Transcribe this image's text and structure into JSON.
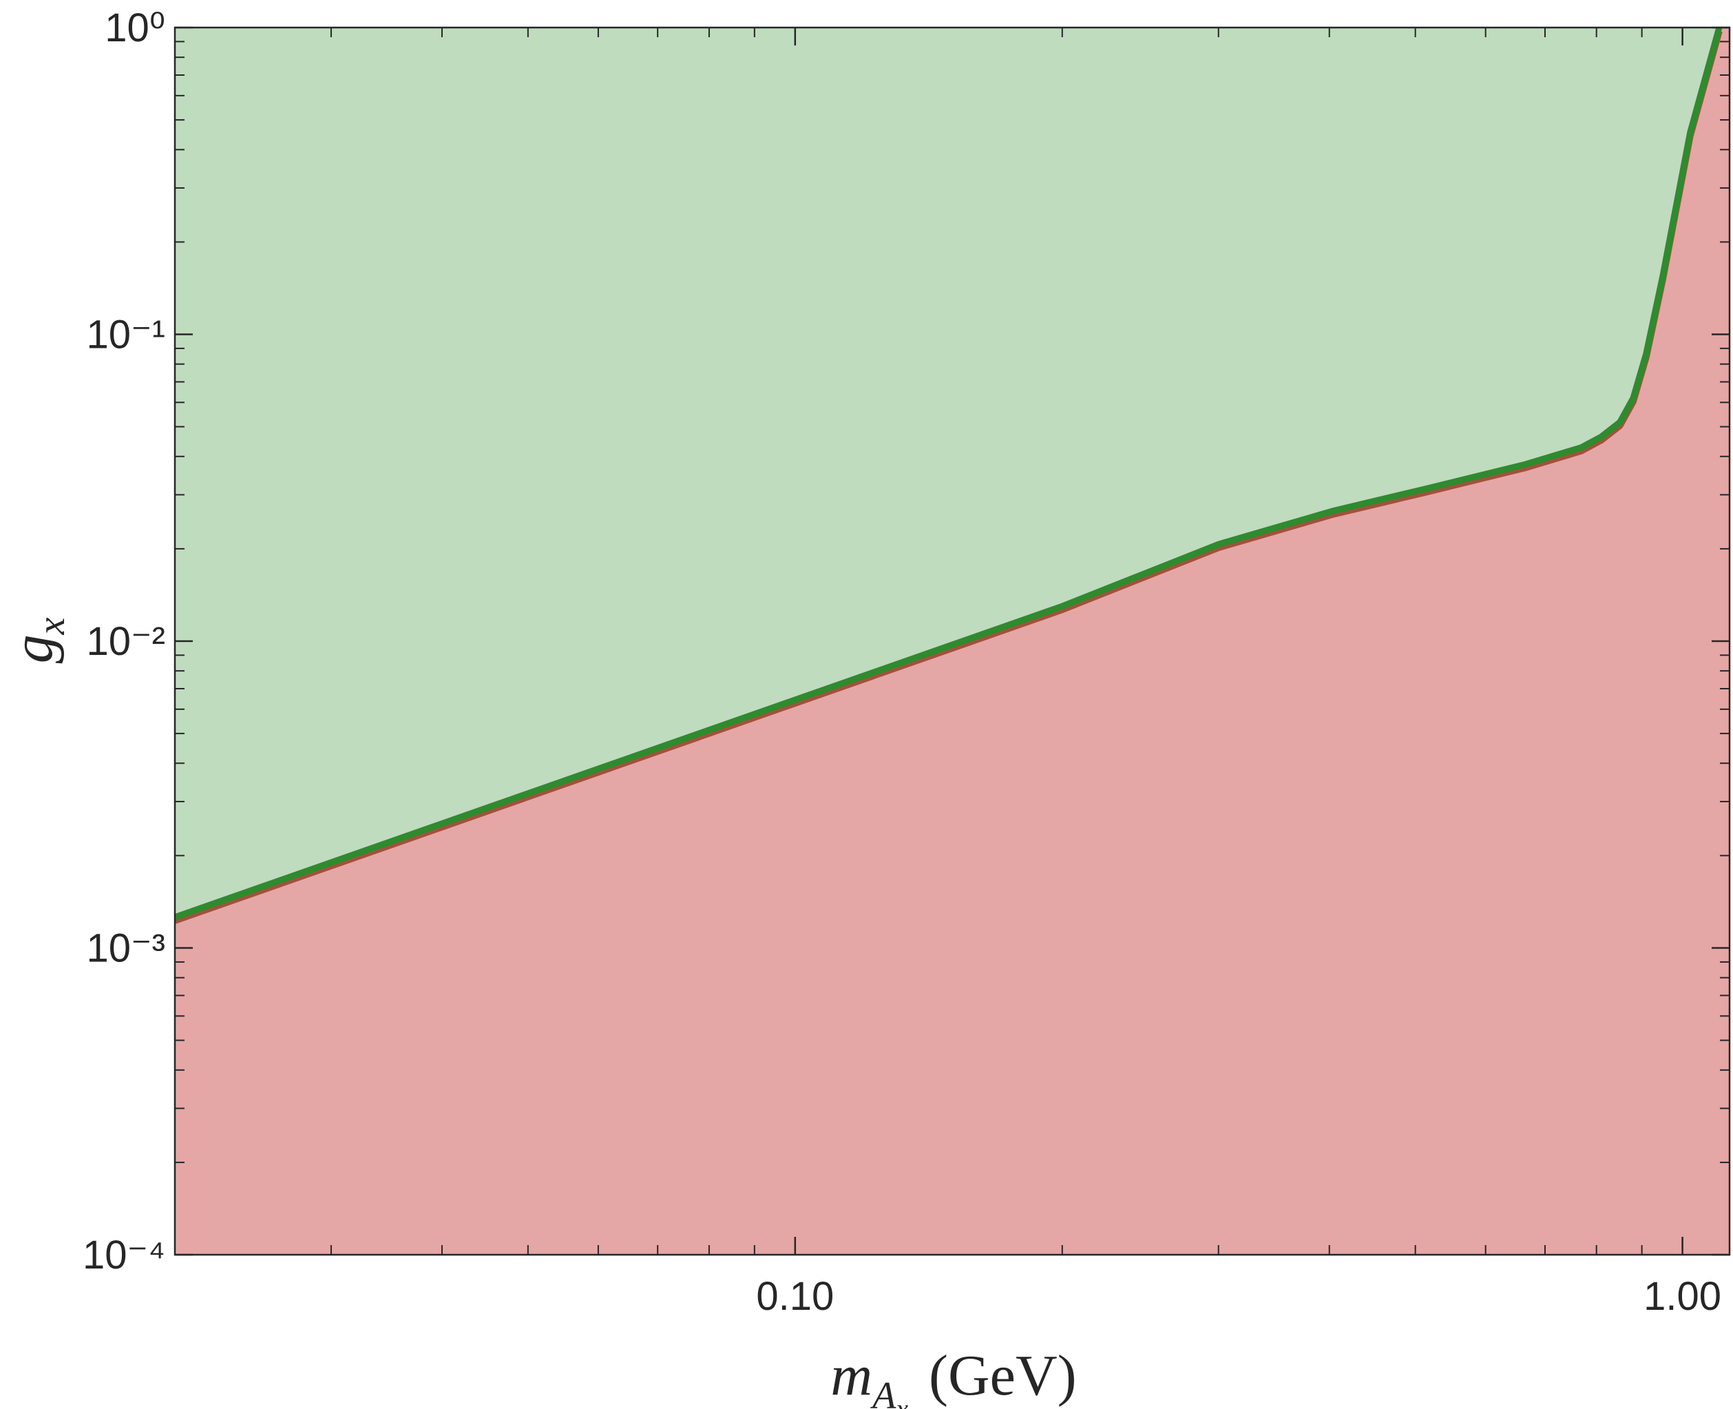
{
  "chart_data": {
    "type": "area",
    "xlabel": {
      "symbol": "m",
      "sub": "A",
      "subsub": "x",
      "unit": "(GeV)"
    },
    "ylabel": {
      "symbol": "g",
      "sub": "x"
    },
    "x": [
      0.02,
      0.1,
      0.2,
      0.3,
      0.404,
      0.514,
      0.665,
      0.769,
      0.81,
      0.85,
      0.88,
      0.91,
      0.95,
      1.02,
      1.1
    ],
    "values": [
      0.00126,
      0.00644,
      0.013,
      0.0207,
      0.0266,
      0.0314,
      0.0377,
      0.0428,
      0.0464,
      0.0517,
      0.062,
      0.0865,
      0.155,
      0.455,
      1
    ],
    "line_color": "#2e8b2e",
    "edge_color": "#a0523c",
    "fill_above_color": "#bfdcbe",
    "fill_below_color": "#e5a6a6",
    "xscale": "log",
    "yscale": "log",
    "xlim": [
      0.02,
      1.13
    ],
    "ylim": [
      0.0001,
      1
    ],
    "xticks": [
      {
        "value": 0.1,
        "label": "0.10"
      },
      {
        "value": 1,
        "label": "1.00"
      }
    ],
    "yticks": [
      {
        "value": 0.0001,
        "label": "10⁻⁴"
      },
      {
        "value": 0.001,
        "label": "10⁻³"
      },
      {
        "value": 0.01,
        "label": "10⁻²"
      },
      {
        "value": 0.1,
        "label": "10⁻¹"
      },
      {
        "value": 1,
        "label": "10⁰"
      }
    ]
  }
}
